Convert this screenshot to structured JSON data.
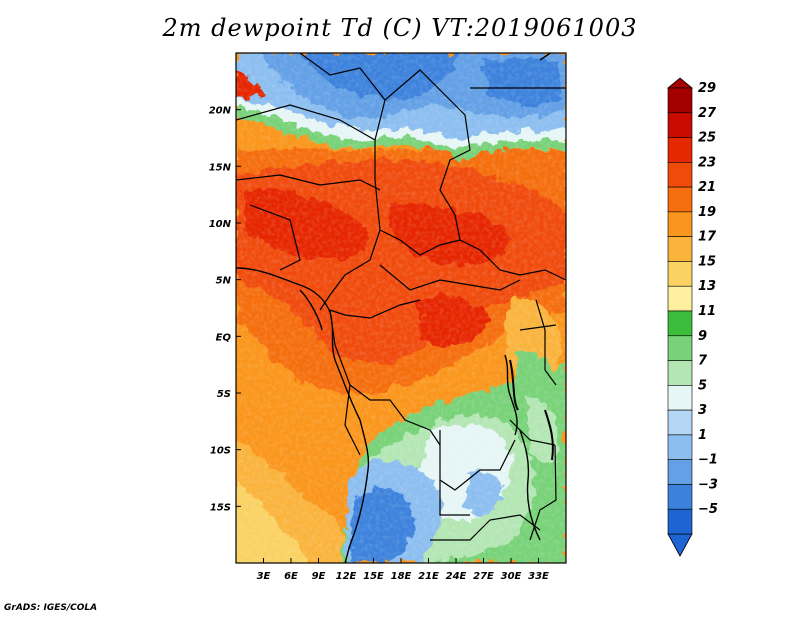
{
  "title": "2m dewpoint Td (C) VT:2019061003",
  "credit": "GrADS: IGES/COLA",
  "map": {
    "lon_range": [
      0,
      36
    ],
    "lat_range": [
      -20,
      25
    ],
    "lat_ticks": [
      {
        "value": 20,
        "label": "20N"
      },
      {
        "value": 15,
        "label": "15N"
      },
      {
        "value": 10,
        "label": "10N"
      },
      {
        "value": 5,
        "label": "5N"
      },
      {
        "value": 0,
        "label": "EQ"
      },
      {
        "value": -5,
        "label": "5S"
      },
      {
        "value": -10,
        "label": "10S"
      },
      {
        "value": -15,
        "label": "15S"
      }
    ],
    "lon_ticks": [
      {
        "value": 3,
        "label": "3E"
      },
      {
        "value": 6,
        "label": "6E"
      },
      {
        "value": 9,
        "label": "9E"
      },
      {
        "value": 12,
        "label": "12E"
      },
      {
        "value": 15,
        "label": "15E"
      },
      {
        "value": 18,
        "label": "18E"
      },
      {
        "value": 21,
        "label": "21E"
      },
      {
        "value": 24,
        "label": "24E"
      },
      {
        "value": 27,
        "label": "27E"
      },
      {
        "value": 30,
        "label": "30E"
      },
      {
        "value": 33,
        "label": "33E"
      }
    ]
  },
  "colorbar": {
    "labels": [
      "29",
      "27",
      "25",
      "23",
      "21",
      "19",
      "17",
      "15",
      "13",
      "11",
      "9",
      "7",
      "5",
      "3",
      "1",
      "−1",
      "−3",
      "−5"
    ],
    "colors": [
      "#a50000",
      "#c80a00",
      "#e62800",
      "#f04b0a",
      "#f56e0f",
      "#fa961e",
      "#fab43c",
      "#fad264",
      "#fff0a0",
      "#3cbe3c",
      "#78d278",
      "#b4e6b4",
      "#e6f5f5",
      "#b4d7f5",
      "#8cbef0",
      "#64a0e6",
      "#3c82dc",
      "#1e64d2"
    ]
  }
}
